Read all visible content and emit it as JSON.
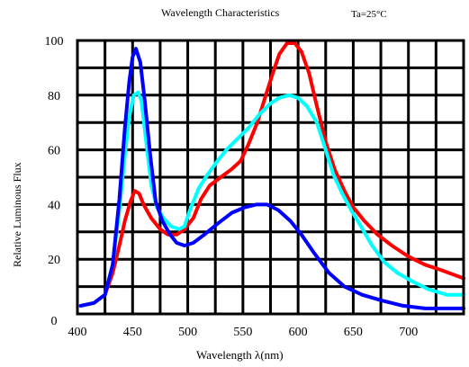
{
  "chart_data": {
    "type": "line",
    "title": "Wavelength Characteristics",
    "condition": "Ta=25°C",
    "xlabel": "Wavelength λ(nm)",
    "ylabel": "Relative Luminous Flux",
    "xlim": [
      400,
      750
    ],
    "ylim": [
      0,
      100
    ],
    "x_grid_step": 25,
    "y_grid_step": 10,
    "grid": true,
    "x_ticks": [
      {
        "value": 400,
        "label": "400"
      },
      {
        "value": 450,
        "label": "450"
      },
      {
        "value": 500,
        "label": "500"
      },
      {
        "value": 550,
        "label": "550"
      },
      {
        "value": 600,
        "label": "600"
      },
      {
        "value": 650,
        "label": "650"
      },
      {
        "value": 700,
        "label": "700"
      }
    ],
    "y_ticks": [
      {
        "value": 0,
        "label": "0"
      },
      {
        "value": 20,
        "label": "20"
      },
      {
        "value": 40,
        "label": "40"
      },
      {
        "value": 60,
        "label": "60"
      },
      {
        "value": 80,
        "label": "80"
      },
      {
        "value": 100,
        "label": "100"
      }
    ],
    "series": [
      {
        "color": "#ff0000",
        "points": [
          [
            403,
            3
          ],
          [
            415,
            4
          ],
          [
            425,
            7
          ],
          [
            432,
            15
          ],
          [
            438,
            25
          ],
          [
            443,
            34
          ],
          [
            448,
            41
          ],
          [
            452,
            45
          ],
          [
            456,
            44
          ],
          [
            460,
            40
          ],
          [
            467,
            35
          ],
          [
            475,
            31
          ],
          [
            482,
            29
          ],
          [
            490,
            29
          ],
          [
            497,
            31
          ],
          [
            505,
            35
          ],
          [
            512,
            42
          ],
          [
            520,
            47
          ],
          [
            530,
            50
          ],
          [
            540,
            53
          ],
          [
            548,
            56
          ],
          [
            555,
            62
          ],
          [
            563,
            70
          ],
          [
            570,
            79
          ],
          [
            577,
            88
          ],
          [
            583,
            95
          ],
          [
            590,
            99
          ],
          [
            597,
            99
          ],
          [
            603,
            96
          ],
          [
            610,
            88
          ],
          [
            617,
            76
          ],
          [
            625,
            63
          ],
          [
            633,
            53
          ],
          [
            642,
            45
          ],
          [
            650,
            39
          ],
          [
            660,
            34
          ],
          [
            672,
            29
          ],
          [
            685,
            25
          ],
          [
            700,
            21
          ],
          [
            715,
            18
          ],
          [
            730,
            16
          ],
          [
            750,
            13
          ]
        ]
      },
      {
        "color": "#00ffff",
        "points": [
          [
            403,
            3
          ],
          [
            415,
            4
          ],
          [
            425,
            7
          ],
          [
            432,
            18
          ],
          [
            438,
            38
          ],
          [
            443,
            58
          ],
          [
            447,
            72
          ],
          [
            451,
            80
          ],
          [
            455,
            81
          ],
          [
            458,
            78
          ],
          [
            462,
            64
          ],
          [
            467,
            47
          ],
          [
            472,
            39
          ],
          [
            478,
            35
          ],
          [
            485,
            32
          ],
          [
            492,
            31
          ],
          [
            497,
            32
          ],
          [
            502,
            38
          ],
          [
            510,
            46
          ],
          [
            518,
            51
          ],
          [
            527,
            56
          ],
          [
            535,
            60
          ],
          [
            545,
            64
          ],
          [
            555,
            68
          ],
          [
            565,
            73
          ],
          [
            575,
            77
          ],
          [
            583,
            79
          ],
          [
            592,
            80
          ],
          [
            600,
            79
          ],
          [
            608,
            76
          ],
          [
            617,
            70
          ],
          [
            625,
            60
          ],
          [
            632,
            51
          ],
          [
            640,
            44
          ],
          [
            648,
            38
          ],
          [
            657,
            32
          ],
          [
            667,
            25
          ],
          [
            678,
            19
          ],
          [
            690,
            15
          ],
          [
            703,
            12
          ],
          [
            718,
            9
          ],
          [
            735,
            7
          ],
          [
            750,
            7
          ]
        ]
      },
      {
        "color": "#0000ff",
        "points": [
          [
            403,
            3
          ],
          [
            415,
            4
          ],
          [
            425,
            7
          ],
          [
            432,
            18
          ],
          [
            438,
            42
          ],
          [
            443,
            68
          ],
          [
            447,
            85
          ],
          [
            450,
            94
          ],
          [
            453,
            97
          ],
          [
            457,
            92
          ],
          [
            461,
            78
          ],
          [
            466,
            58
          ],
          [
            471,
            41
          ],
          [
            477,
            34
          ],
          [
            484,
            29
          ],
          [
            490,
            26
          ],
          [
            497,
            25
          ],
          [
            505,
            26
          ],
          [
            515,
            29
          ],
          [
            527,
            33
          ],
          [
            540,
            37
          ],
          [
            552,
            39
          ],
          [
            562,
            40
          ],
          [
            572,
            40
          ],
          [
            582,
            38
          ],
          [
            593,
            34
          ],
          [
            603,
            29
          ],
          [
            615,
            22
          ],
          [
            628,
            15
          ],
          [
            642,
            10
          ],
          [
            658,
            7
          ],
          [
            675,
            5
          ],
          [
            695,
            3
          ],
          [
            715,
            2
          ],
          [
            735,
            2
          ],
          [
            750,
            2
          ]
        ]
      }
    ]
  }
}
